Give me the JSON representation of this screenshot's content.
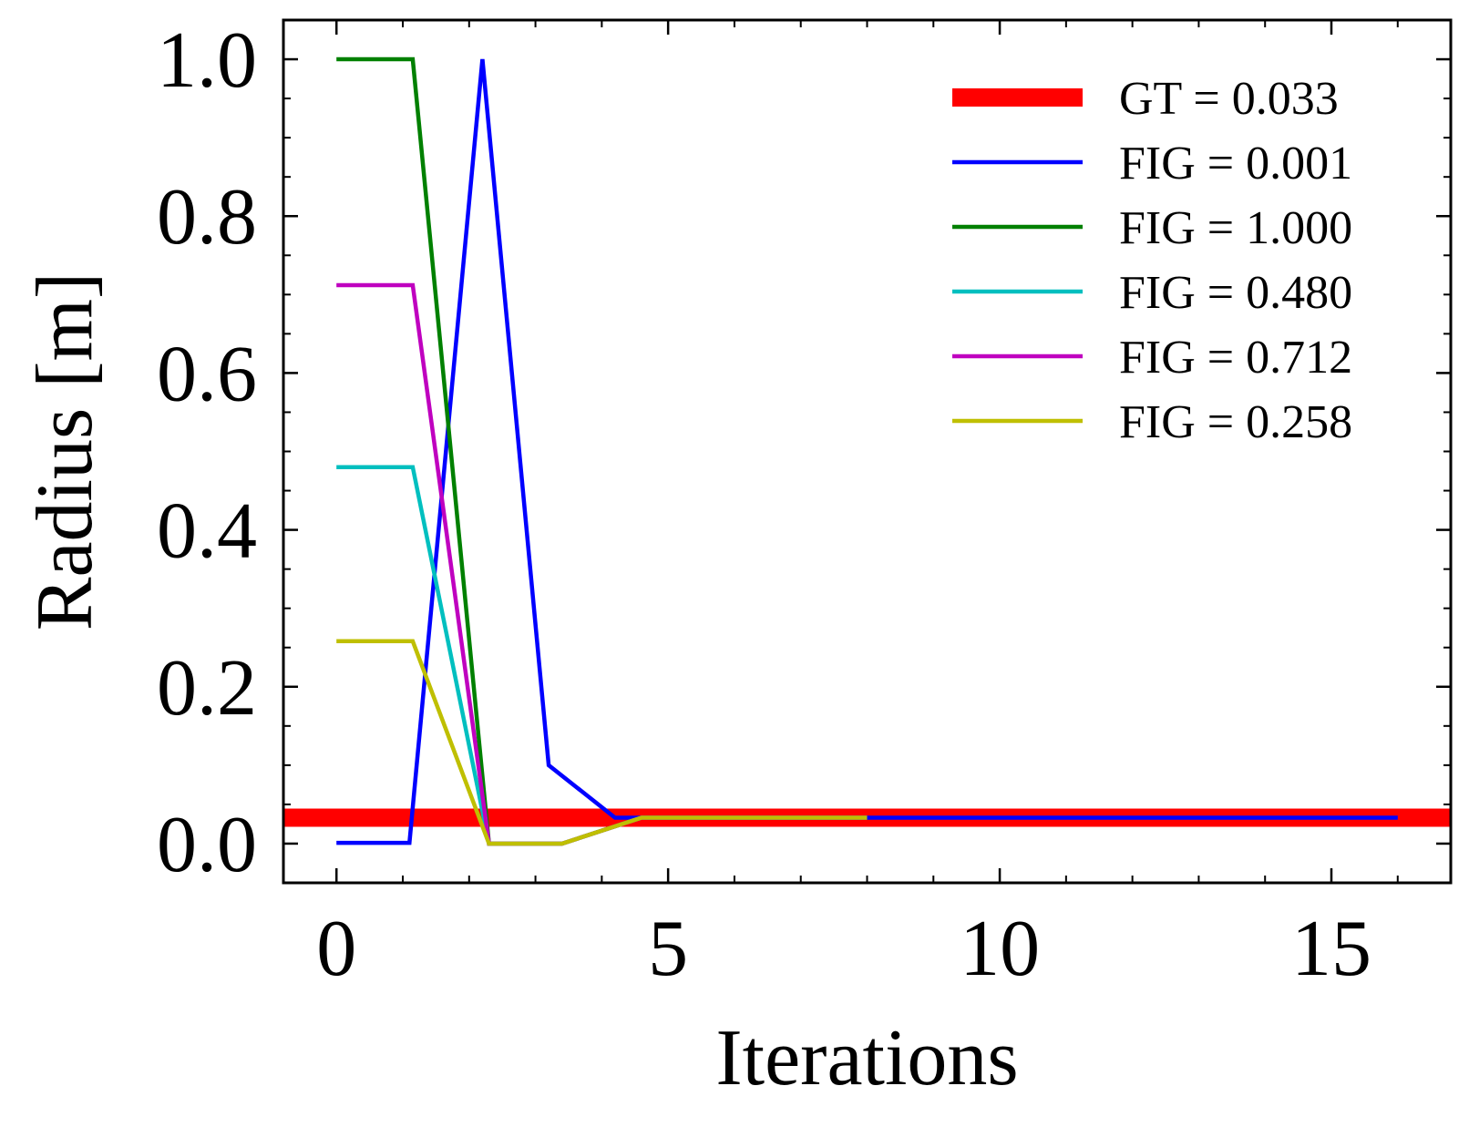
{
  "chart_data": {
    "type": "line",
    "xlabel": "Iterations",
    "ylabel": "Radius [m]",
    "xlim": [
      -0.8,
      16.8
    ],
    "ylim": [
      -0.05,
      1.05
    ],
    "xticks": [
      0,
      5,
      10,
      15
    ],
    "xtick_labels": [
      "0",
      "5",
      "10",
      "15"
    ],
    "yticks": [
      0.0,
      0.2,
      0.4,
      0.6,
      0.8,
      1.0
    ],
    "ytick_labels": [
      "0.0",
      "0.2",
      "0.4",
      "0.6",
      "0.8",
      "1.0"
    ],
    "grid": false,
    "legend_position": "top-right",
    "reference_line": {
      "name": "GT = 0.033",
      "y": 0.033,
      "color": "#ff0000"
    },
    "series": [
      {
        "name": "FIG = 0.001",
        "color": "#0000ff",
        "x": [
          0,
          1.1,
          2.2,
          3.2,
          4.2,
          4.6,
          8.0,
          16.0
        ],
        "y": [
          0.001,
          0.001,
          1.0,
          0.1,
          0.033,
          0.033,
          0.033,
          0.033
        ]
      },
      {
        "name": "FIG = 1.000",
        "color": "#008000",
        "x": [
          0,
          1.15,
          2.3,
          3.4,
          4.6,
          8.0
        ],
        "y": [
          1.0,
          1.0,
          0.0,
          0.0,
          0.033,
          0.033
        ]
      },
      {
        "name": "FIG = 0.480",
        "color": "#00bfbf",
        "x": [
          0,
          1.15,
          2.3,
          3.4,
          4.6,
          8.0
        ],
        "y": [
          0.48,
          0.48,
          0.0,
          0.0,
          0.033,
          0.033
        ]
      },
      {
        "name": "FIG = 0.712",
        "color": "#bf00bf",
        "x": [
          0,
          1.15,
          2.3,
          3.4,
          4.6,
          8.0
        ],
        "y": [
          0.712,
          0.712,
          0.0,
          0.0,
          0.033,
          0.033
        ]
      },
      {
        "name": "FIG = 0.258",
        "color": "#bfbf00",
        "x": [
          0,
          1.15,
          2.3,
          3.4,
          4.6,
          8.0
        ],
        "y": [
          0.258,
          0.258,
          0.0,
          0.0,
          0.033,
          0.033
        ]
      }
    ]
  }
}
